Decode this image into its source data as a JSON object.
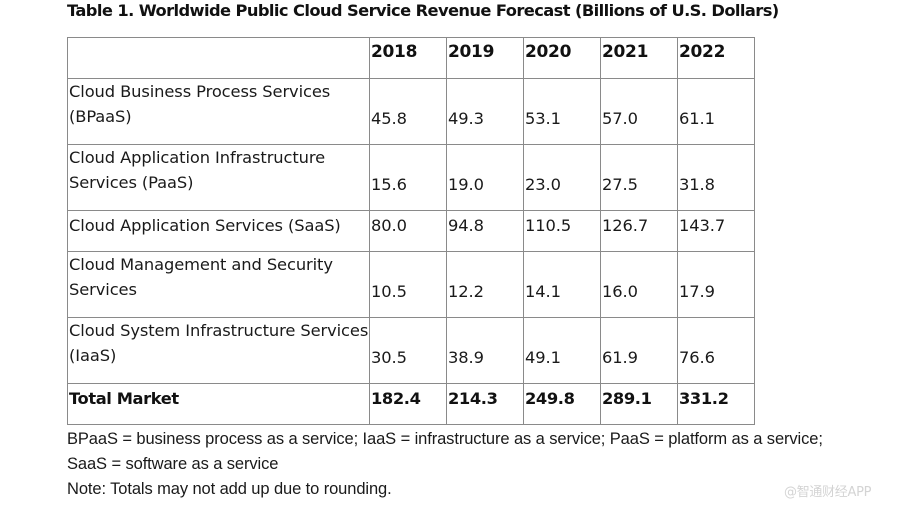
{
  "title": "Table 1. Worldwide Public Cloud Service Revenue Forecast (Billions of U.S. Dollars)",
  "table": {
    "header": {
      "corner": "",
      "years": [
        "2018",
        "2019",
        "2020",
        "2021",
        "2022"
      ]
    },
    "rows": [
      {
        "label": "Cloud Business Process Services (BPaaS)",
        "values": [
          "45.8",
          "49.3",
          "53.1",
          "57.0",
          "61.1"
        ]
      },
      {
        "label": "Cloud Application Infrastructure Services (PaaS)",
        "values": [
          "15.6",
          "19.0",
          "23.0",
          "27.5",
          "31.8"
        ]
      },
      {
        "label": "Cloud Application Services (SaaS)",
        "values": [
          "80.0",
          "94.8",
          "110.5",
          "126.7",
          "143.7"
        ]
      },
      {
        "label": "Cloud Management and Security Services",
        "values": [
          "10.5",
          "12.2",
          "14.1",
          "16.0",
          "17.9"
        ]
      },
      {
        "label": "Cloud System Infrastructure Services (IaaS)",
        "values": [
          "30.5",
          "38.9",
          "49.1",
          "61.9",
          "76.6"
        ]
      }
    ],
    "total": {
      "label": "Total Market",
      "values": [
        "182.4",
        "214.3",
        "249.8",
        "289.1",
        "331.2"
      ]
    }
  },
  "footnotes": {
    "abbreviations": "BPaaS = business process as a service; IaaS = infrastructure as a service; PaaS = platform as a service; SaaS = software as a service",
    "note": "Note: Totals may not add up due to rounding."
  },
  "watermark": "@智通财经APP",
  "chart_data": {
    "type": "table",
    "title": "Table 1. Worldwide Public Cloud Service Revenue Forecast (Billions of U.S. Dollars)",
    "columns": [
      "",
      "2018",
      "2019",
      "2020",
      "2021",
      "2022"
    ],
    "categories": [
      "2018",
      "2019",
      "2020",
      "2021",
      "2022"
    ],
    "series": [
      {
        "name": "Cloud Business Process Services (BPaaS)",
        "values": [
          45.8,
          49.3,
          53.1,
          57.0,
          61.1
        ]
      },
      {
        "name": "Cloud Application Infrastructure Services (PaaS)",
        "values": [
          15.6,
          19.0,
          23.0,
          27.5,
          31.8
        ]
      },
      {
        "name": "Cloud Application Services (SaaS)",
        "values": [
          80.0,
          94.8,
          110.5,
          126.7,
          143.7
        ]
      },
      {
        "name": "Cloud Management and Security Services",
        "values": [
          10.5,
          12.2,
          14.1,
          16.0,
          17.9
        ]
      },
      {
        "name": "Cloud System Infrastructure Services (IaaS)",
        "values": [
          30.5,
          38.9,
          49.1,
          61.9,
          76.6
        ]
      },
      {
        "name": "Total Market",
        "values": [
          182.4,
          214.3,
          249.8,
          289.1,
          331.2
        ]
      }
    ],
    "unit": "Billions of U.S. Dollars"
  }
}
